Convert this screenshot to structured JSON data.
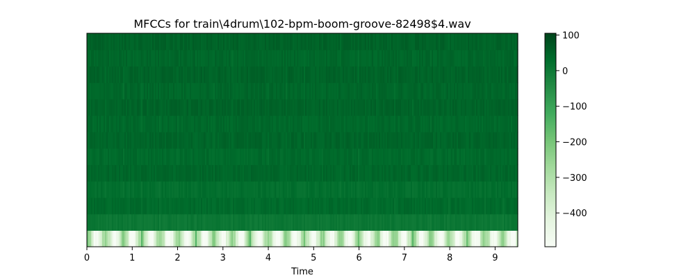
{
  "chart_data": {
    "type": "heatmap",
    "title": "MFCCs for train\\4drum\\102-bpm-boom-groove-82498$4.wav",
    "xlabel": "Time",
    "ylabel": "",
    "xlim": [
      0,
      9.5
    ],
    "x_ticks": [
      0,
      1,
      2,
      3,
      4,
      5,
      6,
      7,
      8,
      9
    ],
    "n_coefficients": 13,
    "colormap": "Greens",
    "color_range": [
      -495,
      105
    ],
    "colorbar_ticks": [
      {
        "value": 100,
        "label": "100"
      },
      {
        "value": 0,
        "label": "0"
      },
      {
        "value": -100,
        "label": "−100"
      },
      {
        "value": -200,
        "label": "−200"
      },
      {
        "value": -300,
        "label": "−300"
      },
      {
        "value": -400,
        "label": "−400"
      }
    ],
    "approx_coefficient_means": [
      -380,
      5,
      35,
      25,
      42,
      35,
      45,
      38,
      48,
      42,
      48,
      42,
      50
    ],
    "colors": {
      "cmap_low": "#f7fcf5",
      "cmap_mid": "#74c476",
      "cmap_high": "#00441b"
    }
  }
}
